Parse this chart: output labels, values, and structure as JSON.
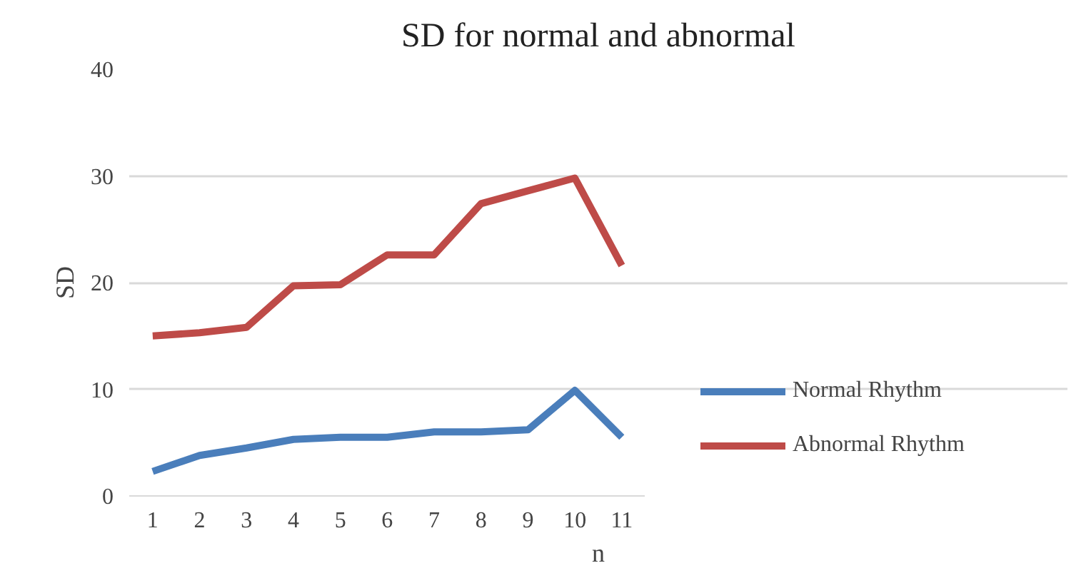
{
  "chart_data": {
    "type": "line",
    "title": "SD for normal and abnormal",
    "xlabel": "n",
    "ylabel": "SD",
    "categories": [
      "1",
      "2",
      "3",
      "4",
      "5",
      "6",
      "7",
      "8",
      "9",
      "10",
      "11"
    ],
    "series": [
      {
        "name": "Normal Rhythm",
        "color": "#4a7ebb",
        "values": [
          2.3,
          3.8,
          4.5,
          5.3,
          5.5,
          5.5,
          6.0,
          6.0,
          6.2,
          9.9,
          5.5
        ]
      },
      {
        "name": "Abnormal Rhythm",
        "color": "#be4b48",
        "values": [
          15.0,
          15.3,
          15.8,
          19.7,
          19.8,
          22.6,
          22.6,
          27.4,
          28.6,
          29.8,
          21.6
        ]
      }
    ],
    "ylim": [
      0,
      40
    ],
    "yticks": [
      0,
      10,
      20,
      30,
      40
    ],
    "grid": "y",
    "legend": "right",
    "marker": "none",
    "line_style": "solid"
  }
}
